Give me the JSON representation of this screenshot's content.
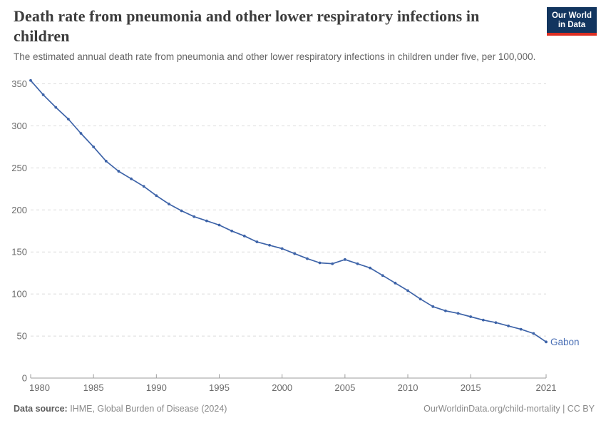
{
  "header": {
    "title": {
      "line1": "Death rate from pneumonia and other lower respiratory infections in",
      "line2": "children"
    },
    "subtitle": "The estimated annual death rate from pneumonia and other lower respiratory infections in children under five, per 100,000.",
    "logo": {
      "line1": "Our World",
      "line2": "in Data"
    }
  },
  "chart_data": {
    "type": "line",
    "title": "Death rate from pneumonia and other lower respiratory infections in children",
    "xlabel": "",
    "ylabel": "",
    "x": [
      1980,
      1981,
      1982,
      1983,
      1984,
      1985,
      1986,
      1987,
      1988,
      1989,
      1990,
      1991,
      1992,
      1993,
      1994,
      1995,
      1996,
      1997,
      1998,
      1999,
      2000,
      2001,
      2002,
      2003,
      2004,
      2005,
      2006,
      2007,
      2008,
      2009,
      2010,
      2011,
      2012,
      2013,
      2014,
      2015,
      2016,
      2017,
      2018,
      2019,
      2020,
      2021
    ],
    "series": [
      {
        "name": "Gabon",
        "values": [
          354,
          337,
          322,
          308,
          291,
          275,
          258,
          246,
          237,
          228,
          217,
          207,
          199,
          192,
          187,
          182,
          175,
          169,
          162,
          158,
          154,
          148,
          142,
          137,
          136,
          141,
          136,
          131,
          122,
          113,
          104,
          94,
          85,
          80,
          77,
          73,
          69,
          66,
          62,
          58,
          53,
          43
        ]
      }
    ],
    "end_label": "Gabon",
    "ylim": [
      0,
      350
    ],
    "y_ticks": [
      0,
      50,
      100,
      150,
      200,
      250,
      300,
      350
    ],
    "x_ticks": [
      1980,
      1985,
      1990,
      1995,
      2000,
      2005,
      2010,
      2015,
      2021
    ],
    "grid": "horizontal-dashed",
    "legend_position": "end-of-line-label"
  },
  "footer": {
    "source_label": "Data source:",
    "source_text": " IHME, Global Burden of Disease (2024)",
    "credit": "OurWorldinData.org/child-mortality | CC BY"
  },
  "colors": {
    "line": "#3d63a8",
    "entity_label": "#4a6fb5",
    "grid": "#dcdcdc",
    "axis": "#9e9e9e",
    "tick_text": "#6b6b6b",
    "logo_bg": "#12355f",
    "logo_red": "#dc2e22"
  }
}
